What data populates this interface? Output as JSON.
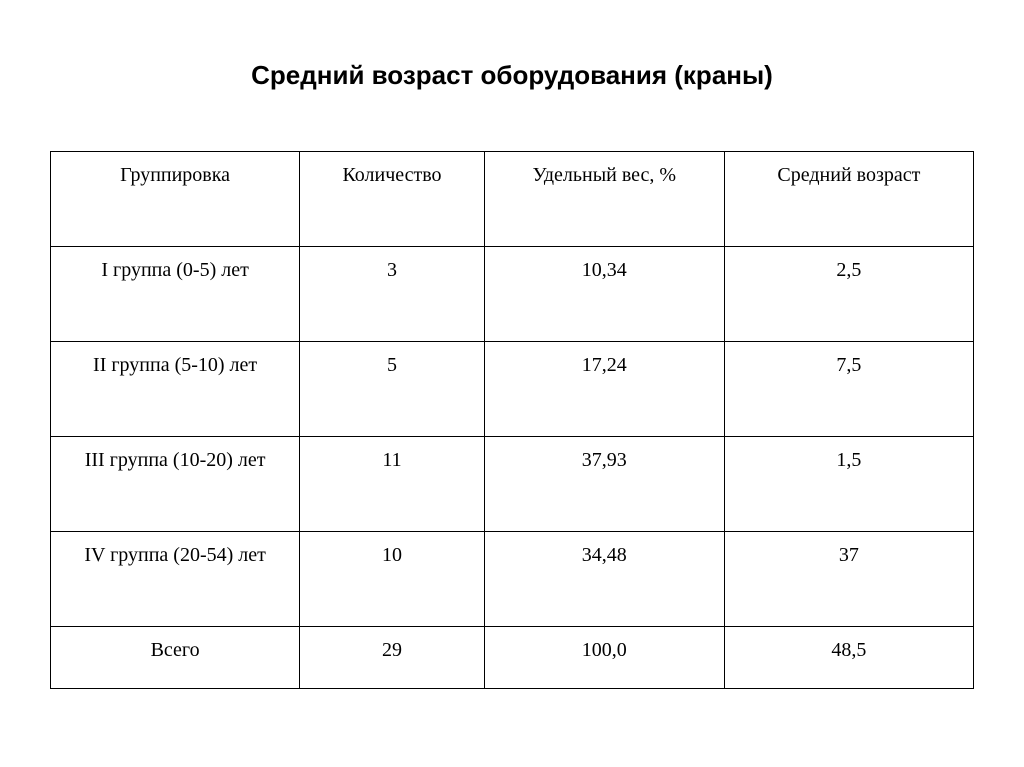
{
  "title": "Средний возраст оборудования (краны)",
  "table": {
    "type": "table",
    "columns": [
      {
        "label": "Группировка",
        "width_pct": 27,
        "align": "center"
      },
      {
        "label": "Количество",
        "width_pct": 20,
        "align": "center"
      },
      {
        "label": "Удельный вес, %",
        "width_pct": 26,
        "align": "center"
      },
      {
        "label": "Средний возраст",
        "width_pct": 27,
        "align": "center"
      }
    ],
    "rows": [
      {
        "group": "I группа (0-5) лет",
        "count": "3",
        "weight": "10,34",
        "age": "2,5",
        "tall": true
      },
      {
        "group": "II группа (5-10) лет",
        "count": "5",
        "weight": "17,24",
        "age": "7,5",
        "tall": true
      },
      {
        "group": "III группа (10-20) лет",
        "count": "11",
        "weight": "37,93",
        "age": "1,5",
        "tall": true
      },
      {
        "group": "IV группа (20-54) лет",
        "count": "10",
        "weight": "34,48",
        "age": "37",
        "tall": true
      },
      {
        "group": "Всего",
        "count": "29",
        "weight": "100,0",
        "age": "48,5",
        "tall": false
      }
    ],
    "border_color": "#000000",
    "background_color": "#ffffff",
    "text_color": "#000000",
    "header_fontsize": 20,
    "cell_fontsize": 20,
    "title_fontsize": 26,
    "title_font": "Arial",
    "body_font": "Times New Roman"
  }
}
